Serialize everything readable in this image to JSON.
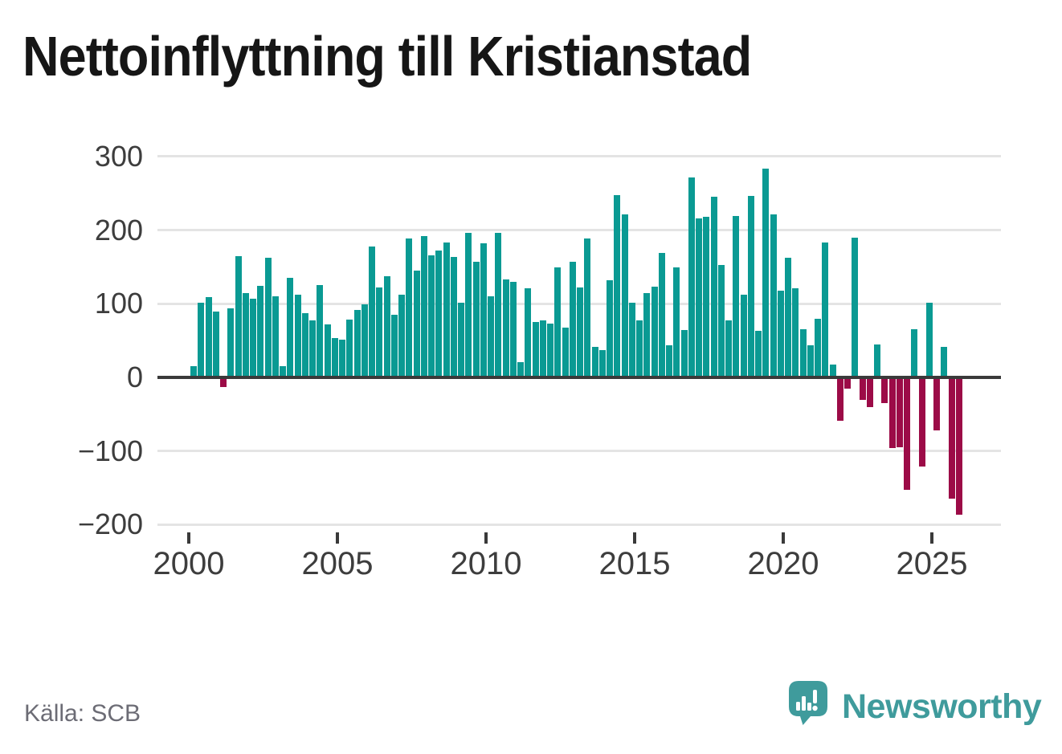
{
  "title": "Nettoinflyttning till Kristianstad",
  "source": "Källa: SCB",
  "brand": {
    "name": "Newsworthy"
  },
  "colors": {
    "positive": "#0a9a93",
    "negative": "#9c0b47",
    "brand": "#3f9b9c",
    "grid": "#e4e4e4",
    "axis": "#3a3a3a",
    "text": "#3d3d3d"
  },
  "chart_data": {
    "type": "bar",
    "title": "Nettoinflyttning till Kristianstad",
    "frequency": "quarterly",
    "start": "2000-Q1",
    "end": "2025-Q4",
    "xlabel": "",
    "ylabel": "",
    "x_tick_labels": [
      "2000",
      "2005",
      "2010",
      "2015",
      "2020",
      "2025"
    ],
    "y_ticks": [
      300,
      200,
      100,
      0,
      -100,
      -200
    ],
    "y_tick_labels": [
      "300",
      "200",
      "100",
      "0",
      "−100",
      "−200"
    ],
    "ylim": [
      -200,
      300
    ],
    "grid": "horizontal",
    "legend": "none",
    "series": [
      {
        "name": "Nettoinflyttning",
        "values": [
          15,
          101,
          109,
          89,
          -13,
          94,
          165,
          115,
          107,
          124,
          163,
          110,
          15,
          135,
          112,
          87,
          77,
          125,
          72,
          54,
          51,
          79,
          92,
          99,
          178,
          122,
          138,
          85,
          112,
          189,
          145,
          192,
          166,
          172,
          183,
          164,
          102,
          196,
          157,
          182,
          110,
          196,
          133,
          130,
          21,
          121,
          75,
          77,
          73,
          149,
          68,
          157,
          122,
          189,
          41,
          37,
          132,
          248,
          222,
          101,
          77,
          115,
          123,
          169,
          44,
          150,
          64,
          272,
          216,
          218,
          245,
          153,
          78,
          219,
          112,
          247,
          63,
          284,
          222,
          118,
          163,
          121,
          66,
          44,
          80,
          183,
          17,
          -59,
          -15,
          190,
          -30,
          -40,
          45,
          -35,
          -96,
          -95,
          -153,
          65,
          -121,
          101,
          -72,
          41,
          -165,
          -186
        ]
      }
    ]
  }
}
